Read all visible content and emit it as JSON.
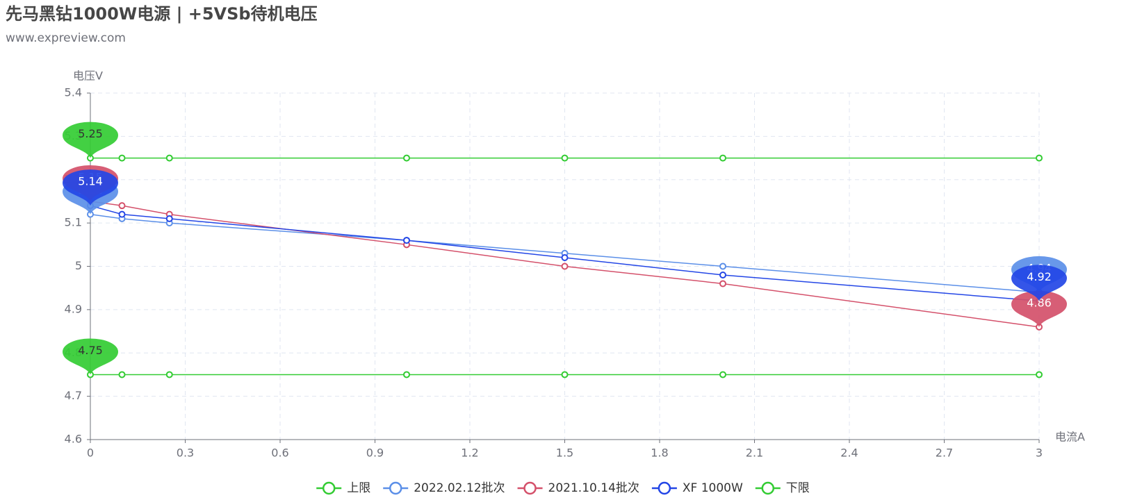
{
  "chart_data": {
    "type": "line",
    "title": "先马黑钻1000W电源 | +5VSb待机电压",
    "subtitle": "www.expreview.com",
    "y_label": "电压V",
    "x_label": "电流A",
    "x": [
      0,
      0.1,
      0.25,
      1,
      1.5,
      2,
      3
    ],
    "series": [
      {
        "name": "上限",
        "color": "#33cc33",
        "values": [
          5.25,
          5.25,
          5.25,
          5.25,
          5.25,
          5.25,
          5.25
        ]
      },
      {
        "name": "2022.02.12批次",
        "color": "#5b8fe8",
        "values": [
          5.12,
          5.11,
          5.1,
          5.06,
          5.03,
          5.0,
          4.94
        ]
      },
      {
        "name": "2021.10.14批次",
        "color": "#d4506a",
        "values": [
          5.15,
          5.14,
          5.12,
          5.05,
          5.0,
          4.96,
          4.86
        ]
      },
      {
        "name": "XF 1000W",
        "color": "#2346e6",
        "values": [
          5.14,
          5.12,
          5.11,
          5.06,
          5.02,
          4.98,
          4.92
        ]
      },
      {
        "name": "下限",
        "color": "#33cc33",
        "values": [
          4.75,
          4.75,
          4.75,
          4.75,
          4.75,
          4.75,
          4.75
        ]
      }
    ],
    "xlim": [
      0,
      3
    ],
    "xticks": [
      0,
      0.3,
      0.6,
      0.9,
      1.2,
      1.5,
      1.8,
      2.1,
      2.4,
      2.7,
      3
    ],
    "ylim": [
      4.6,
      5.4
    ],
    "yticks": [
      4.6,
      4.7,
      4.8,
      4.9,
      5,
      5.1,
      5.2,
      5.3,
      5.4
    ],
    "grid": true,
    "legend": "bottom"
  }
}
